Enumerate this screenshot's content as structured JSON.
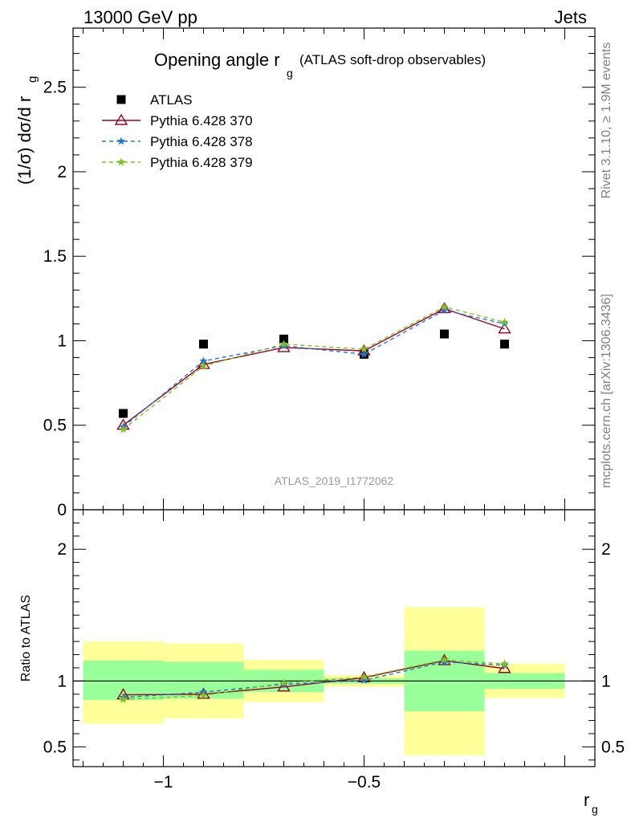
{
  "header": {
    "left": "13000 GeV pp",
    "right": "Jets"
  },
  "title": {
    "main": "Opening angle r",
    "sub": "g",
    "note": "(ATLAS soft-drop observables)"
  },
  "ylabel": {
    "text": "(1/σ) dσ/d r",
    "sub": "g"
  },
  "ratio_ylabel": "Ratio to ATLAS",
  "xlabel": {
    "text": "r",
    "sub": "g"
  },
  "side_text": {
    "rivet": "Rivet 3.1.10, ≥ 1.9M events",
    "mcplots": "mcplots.cern.ch [arXiv:1306.3436]"
  },
  "analysis_id": "ATLAS_2019_I1772062",
  "chart_data": {
    "type": "scatter",
    "xlim": [
      -1.225,
      0.075
    ],
    "ylim": [
      0,
      2.85
    ],
    "ratio_ylim": [
      0.35,
      2.3
    ],
    "x_ticks": [
      {
        "value": -1,
        "label": "−1"
      },
      {
        "value": -0.5,
        "label": "−0.5"
      }
    ],
    "y_ticks": [
      {
        "value": 0,
        "label": "0"
      },
      {
        "value": 0.5,
        "label": "0.5"
      },
      {
        "value": 1,
        "label": "1"
      },
      {
        "value": 1.5,
        "label": "1.5"
      },
      {
        "value": 2,
        "label": "2"
      },
      {
        "value": 2.5,
        "label": "2.5"
      }
    ],
    "ratio_y_ticks": [
      {
        "value": 0.5,
        "label": "0.5"
      },
      {
        "value": 1,
        "label": "1"
      },
      {
        "value": 2,
        "label": "2"
      }
    ],
    "bin_edges": [
      -1.2,
      -1.0,
      -0.8,
      -0.6,
      -0.4,
      -0.2,
      0.0
    ],
    "x": [
      -1.1,
      -0.9,
      -0.7,
      -0.5,
      -0.3,
      -0.15
    ],
    "bands": [
      {
        "x0": -1.2,
        "x1": -1.0,
        "green": [
          0.855,
          1.155
        ],
        "yellow": [
          0.675,
          1.3
        ]
      },
      {
        "x0": -1.0,
        "x1": -0.8,
        "green": [
          0.865,
          1.145
        ],
        "yellow": [
          0.715,
          1.285
        ]
      },
      {
        "x0": -0.8,
        "x1": -0.6,
        "green": [
          0.915,
          1.085
        ],
        "yellow": [
          0.84,
          1.16
        ]
      },
      {
        "x0": -0.6,
        "x1": -0.4,
        "green": [
          0.98,
          1.02
        ],
        "yellow": [
          0.955,
          1.045
        ]
      },
      {
        "x0": -0.4,
        "x1": -0.2,
        "green": [
          0.77,
          1.23
        ],
        "yellow": [
          0.435,
          1.56
        ]
      },
      {
        "x0": -0.2,
        "x1": 0.0,
        "green": [
          0.94,
          1.06
        ],
        "yellow": [
          0.87,
          1.13
        ]
      }
    ],
    "series": [
      {
        "name": "ATLAS",
        "marker": "square",
        "color": "#000000",
        "values": [
          0.57,
          0.98,
          1.01,
          0.92,
          1.04,
          0.98
        ],
        "ratio": [
          1,
          1,
          1,
          1,
          1,
          1
        ]
      },
      {
        "name": "Pythia 6.428 370",
        "marker": "triangle",
        "color": "#a00021",
        "dash": "",
        "values": [
          0.5,
          0.86,
          0.96,
          0.94,
          1.19,
          1.07
        ],
        "ratio": [
          0.895,
          0.9,
          0.955,
          1.025,
          1.155,
          1.095
        ]
      },
      {
        "name": "Pythia 6.428 378",
        "marker": "star",
        "color": "#1e78d2",
        "dash": "5,4",
        "values": [
          0.49,
          0.88,
          0.97,
          0.92,
          1.18,
          1.1
        ],
        "ratio": [
          0.875,
          0.915,
          0.975,
          1.005,
          1.145,
          1.12
        ]
      },
      {
        "name": "Pythia 6.428 379",
        "marker": "star",
        "color": "#7dc21e",
        "dash": "5,4",
        "values": [
          0.475,
          0.85,
          0.98,
          0.95,
          1.2,
          1.11
        ],
        "ratio": [
          0.86,
          0.89,
          0.985,
          1.03,
          1.16,
          1.13
        ]
      }
    ]
  }
}
